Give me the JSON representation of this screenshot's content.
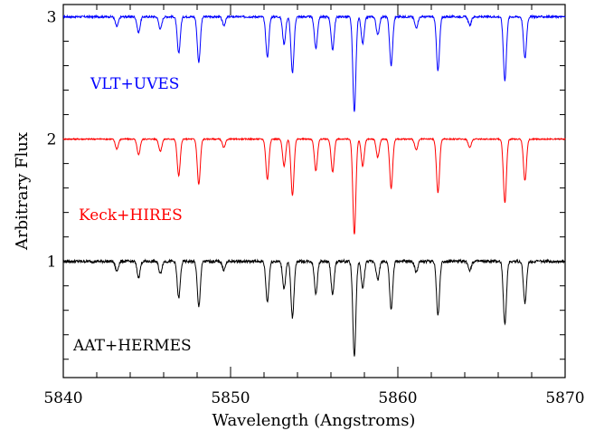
{
  "chart_data": {
    "type": "line",
    "xlabel": "Wavelength (Angstroms)",
    "ylabel": "Arbitrary Flux",
    "xlim": [
      5840,
      5870
    ],
    "ylim": [
      0.05,
      3.1
    ],
    "xticks": [
      5840,
      5850,
      5860,
      5870
    ],
    "xtick_labels": [
      "5840",
      "5850",
      "5860",
      "5870"
    ],
    "yticks": [
      1,
      2,
      3
    ],
    "ytick_labels": [
      "1",
      "2",
      "3"
    ],
    "grid": false,
    "continuum": [
      1.0,
      2.0,
      3.0
    ],
    "absorption_lines": [
      {
        "wavelength": 5843.2,
        "depth": 0.08
      },
      {
        "wavelength": 5844.5,
        "depth": 0.13
      },
      {
        "wavelength": 5845.8,
        "depth": 0.1
      },
      {
        "wavelength": 5846.9,
        "depth": 0.3
      },
      {
        "wavelength": 5848.1,
        "depth": 0.37
      },
      {
        "wavelength": 5849.6,
        "depth": 0.07
      },
      {
        "wavelength": 5852.2,
        "depth": 0.33
      },
      {
        "wavelength": 5853.2,
        "depth": 0.22
      },
      {
        "wavelength": 5853.7,
        "depth": 0.46
      },
      {
        "wavelength": 5855.1,
        "depth": 0.26
      },
      {
        "wavelength": 5856.1,
        "depth": 0.27
      },
      {
        "wavelength": 5857.4,
        "depth": 0.78
      },
      {
        "wavelength": 5857.9,
        "depth": 0.22
      },
      {
        "wavelength": 5858.8,
        "depth": 0.15
      },
      {
        "wavelength": 5859.6,
        "depth": 0.4
      },
      {
        "wavelength": 5861.1,
        "depth": 0.09
      },
      {
        "wavelength": 5862.4,
        "depth": 0.44
      },
      {
        "wavelength": 5864.3,
        "depth": 0.07
      },
      {
        "wavelength": 5866.4,
        "depth": 0.52
      },
      {
        "wavelength": 5867.6,
        "depth": 0.34
      }
    ],
    "series": [
      {
        "name": "VLT+UVES",
        "color": "#0000ff",
        "offset": 3.0,
        "noise": 0.008
      },
      {
        "name": "Keck+HIRES",
        "color": "#ff0000",
        "offset": 2.0,
        "noise": 0.005
      },
      {
        "name": "AAT+HERMES",
        "color": "#000000",
        "offset": 1.0,
        "noise": 0.012
      }
    ]
  }
}
